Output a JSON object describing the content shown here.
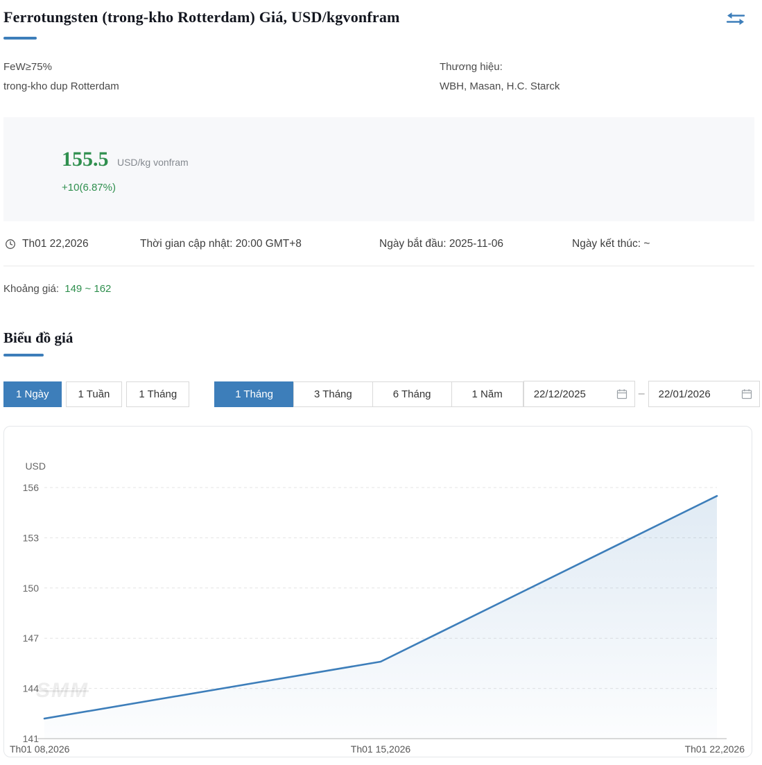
{
  "header": {
    "title": "Ferrotungsten (trong-kho Rotterdam) Giá, USD/kgvonfram"
  },
  "icons": {
    "compare": "swap-arrows-icon",
    "clock": "clock-icon",
    "calendar": "calendar-icon"
  },
  "specs": {
    "grade": "FeW≥75%",
    "warehouse": "trong-kho dup Rotterdam",
    "brand_label": "Thương hiệu:",
    "brand_value": "WBH, Masan, H.C. Starck"
  },
  "price": {
    "value": "155.5",
    "unit": "USD/kg vonfram",
    "change": "+10(6.87%)"
  },
  "meta": {
    "date": "Th01 22,2026",
    "update_time": "Thời gian cập nhật: 20:00 GMT+8",
    "start_date": "Ngày bắt đầu: 2025-11-06",
    "end_date": "Ngày kết thúc: ~"
  },
  "range": {
    "label": "Khoảng giá:",
    "value": "149 ~ 162"
  },
  "chart_section": {
    "title": "Biểu đồ giá",
    "period_buttons": [
      "1 Ngày",
      "1 Tuần",
      "1 Tháng"
    ],
    "period_active": "1 Ngày",
    "range_tabs": [
      "1 Tháng",
      "3 Tháng",
      "6 Tháng",
      "1 Năm"
    ],
    "range_active": "1 Tháng",
    "date_from": "22/12/2025",
    "date_separator": "–",
    "date_to": "22/01/2026",
    "watermark": "SMM"
  },
  "colors": {
    "accent_blue": "#3d7eba",
    "green": "#2f8f4e",
    "highlight_salmon": "#f08468",
    "price_box_bg": "#f7f8fa"
  },
  "chart_data": {
    "type": "line",
    "title": "",
    "xlabel": "",
    "ylabel": "USD",
    "x": [
      "Th01 08,2026",
      "Th01 15,2026",
      "Th01 22,2026"
    ],
    "values": [
      142.2,
      145.6,
      155.5
    ],
    "ylim": [
      141,
      156
    ],
    "yticks": [
      141,
      144,
      147,
      150,
      153,
      156
    ],
    "grid": "horizontal-dashed",
    "legend": "none",
    "line_color": "#3d7eba",
    "area": true
  }
}
